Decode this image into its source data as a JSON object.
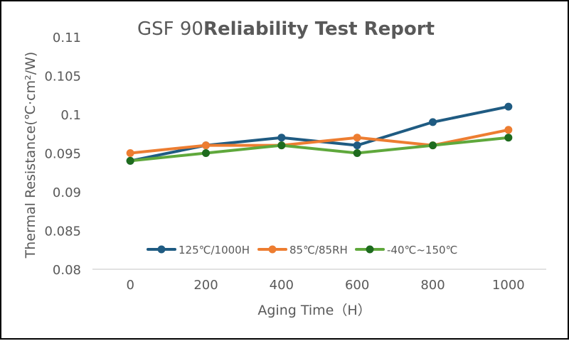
{
  "chart_data": {
    "type": "line",
    "title_prefix": "GSF 90",
    "title_main": "Reliability Test Report",
    "xlabel": "Aging Time（H）",
    "ylabel": "Thermal Resistance(℃·cm²/W)",
    "x": [
      0,
      200,
      400,
      600,
      800,
      1000
    ],
    "x_tick_labels": [
      "0",
      "200",
      "400",
      "600",
      "800",
      "1000"
    ],
    "ylim": [
      0.08,
      0.11
    ],
    "y_ticks": [
      0.08,
      0.085,
      0.09,
      0.095,
      0.1,
      0.105,
      0.11
    ],
    "y_tick_labels": [
      "0.08",
      "0.085",
      "0.09",
      "0.095",
      "0.1",
      "0.105",
      "0.11"
    ],
    "grid": false,
    "legend_position": "bottom-inside",
    "series": [
      {
        "name": "125℃/1000H",
        "color": "#1f5b82",
        "values": [
          0.094,
          0.096,
          0.097,
          0.096,
          0.099,
          0.101
        ]
      },
      {
        "name": "85℃/85RH",
        "color": "#ed7d31",
        "values": [
          0.095,
          0.096,
          0.096,
          0.097,
          0.096,
          0.098
        ]
      },
      {
        "name": "-40℃~150℃",
        "color": "#5fa83c",
        "marker_color": "#1e6b1e",
        "values": [
          0.094,
          0.095,
          0.096,
          0.095,
          0.096,
          0.097
        ]
      }
    ]
  }
}
